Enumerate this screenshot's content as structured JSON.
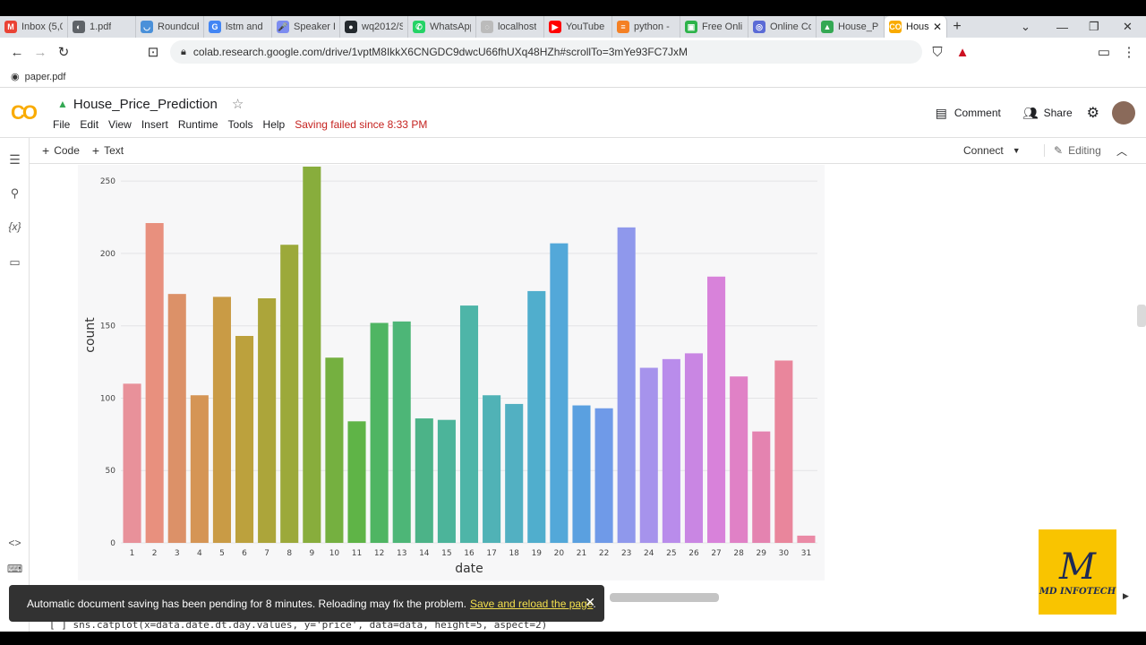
{
  "browser": {
    "tabs": [
      {
        "label": "Inbox (5,0",
        "fav_color": "#ea4335",
        "fav_glyph": "M"
      },
      {
        "label": "1.pdf",
        "fav_color": "#5f6368",
        "fav_glyph": "◐"
      },
      {
        "label": "Roundcub",
        "fav_color": "#4a90d9",
        "fav_glyph": "◡"
      },
      {
        "label": "lstm and",
        "fav_color": "#4285f4",
        "fav_glyph": "G"
      },
      {
        "label": "Speaker D",
        "fav_color": "#7c8cf0",
        "fav_glyph": "🎤"
      },
      {
        "label": "wq2012/S",
        "fav_color": "#24292e",
        "fav_glyph": "●"
      },
      {
        "label": "WhatsApp",
        "fav_color": "#25d366",
        "fav_glyph": "✆"
      },
      {
        "label": "localhost",
        "fav_color": "#bbbbbb",
        "fav_glyph": "◌"
      },
      {
        "label": "YouTube",
        "fav_color": "#ff0000",
        "fav_glyph": "▶"
      },
      {
        "label": "python -",
        "fav_color": "#f48024",
        "fav_glyph": "≡"
      },
      {
        "label": "Free Onli",
        "fav_color": "#2db34a",
        "fav_glyph": "▣"
      },
      {
        "label": "Online Co",
        "fav_color": "#5b6bd6",
        "fav_glyph": "◎"
      },
      {
        "label": "House_Pr",
        "fav_color": "#34a853",
        "fav_glyph": "▲"
      },
      {
        "label": "House",
        "fav_color": "#f9ab00",
        "fav_glyph": "CO",
        "active": true
      }
    ],
    "url": "colab.research.google.com/drive/1vptM8IkkX6CNGDC9dwcU66fhUXq48HZh#scrollTo=3mYe93FC7JxM",
    "bookmark": "paper.pdf"
  },
  "colab": {
    "logo": "CO",
    "title": "House_Price_Prediction",
    "menus": [
      "File",
      "Edit",
      "View",
      "Insert",
      "Runtime",
      "Tools",
      "Help"
    ],
    "saving_status": "Saving failed since 8:33 PM",
    "comment": "Comment",
    "share": "Share",
    "add_code": "Code",
    "add_text": "Text",
    "connect": "Connect",
    "editing": "Editing"
  },
  "rail": {
    "variables": "{x}"
  },
  "chart_data": {
    "type": "bar",
    "xlabel": "date",
    "ylabel": "count",
    "ylim": [
      0,
      260
    ],
    "yticks": [
      0,
      50,
      100,
      150,
      200,
      250
    ],
    "categories": [
      "1",
      "2",
      "3",
      "4",
      "5",
      "6",
      "7",
      "8",
      "9",
      "10",
      "11",
      "12",
      "13",
      "14",
      "15",
      "16",
      "17",
      "18",
      "19",
      "20",
      "21",
      "22",
      "23",
      "24",
      "25",
      "26",
      "27",
      "28",
      "29",
      "30",
      "31"
    ],
    "values": [
      110,
      221,
      172,
      102,
      170,
      143,
      169,
      206,
      262,
      128,
      84,
      152,
      153,
      86,
      85,
      164,
      102,
      96,
      174,
      207,
      95,
      93,
      218,
      121,
      127,
      131,
      184,
      115,
      77,
      126,
      5
    ],
    "colors": [
      "#e8919a",
      "#e8907e",
      "#dc9168",
      "#d59555",
      "#c99b45",
      "#bca13d",
      "#aca53a",
      "#9ca93a",
      "#88ad3c",
      "#75b040",
      "#5fb447",
      "#4fb563",
      "#4db677",
      "#4cb388",
      "#4cb49a",
      "#4eb5a8",
      "#50b2b6",
      "#52b0c2",
      "#50aecd",
      "#53a8d9",
      "#5aa0e0",
      "#6f9ae8",
      "#8f98ec",
      "#a693ec",
      "#b98ceb",
      "#c986e3",
      "#d882da",
      "#e081c6",
      "#e483b0",
      "#e9869c",
      "#ea8aa6"
    ],
    "grid": true
  },
  "toast": {
    "message": "Automatic document saving has been pending for 8 minutes. Reloading may fix the problem.",
    "link": "Save and reload the page",
    "tail": "."
  },
  "code_line": "[ ]  sns.catplot(x=data.date.dt.day.values, y='price', data=data, height=5, aspect=2)",
  "watermark": {
    "line1": "M",
    "line2": "MD INFOTECH"
  }
}
